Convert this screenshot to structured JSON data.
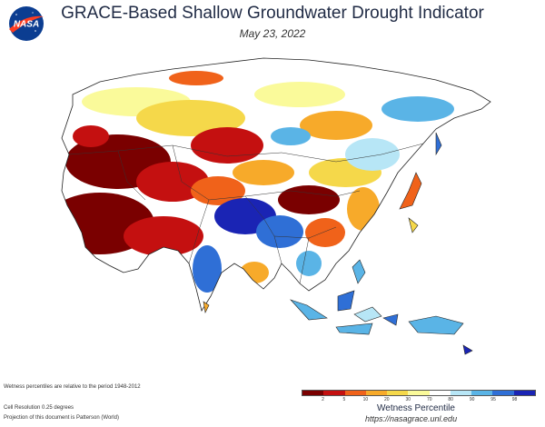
{
  "header": {
    "title": "GRACE-Based Shallow Groundwater Drought Indicator",
    "date": "May 23, 2022",
    "logo_text": "NASA"
  },
  "footer": {
    "note_1": "Wetness percentiles are relative to the period 1948-2012",
    "note_2": "Cell Resolution 0.25 degrees",
    "note_3": "Projection of this document is Patterson (World)"
  },
  "legend": {
    "title": "Wetness Percentile",
    "ticks": [
      "2",
      "5",
      "10",
      "20",
      "30",
      "70",
      "80",
      "90",
      "95",
      "98"
    ],
    "colors": [
      "#7a0000",
      "#c41010",
      "#f0621a",
      "#f7aa2a",
      "#f5d84a",
      "#fafa9a",
      "#ffffff",
      "#b7e6f6",
      "#5ab4e6",
      "#2f6fd6",
      "#1a24b4"
    ]
  },
  "source_url": "https://nasagrace.unl.edu",
  "map": {
    "region": "Asia",
    "colors": {
      "extreme_dry": "#7a0000",
      "very_dry": "#c41010",
      "dry": "#f0621a",
      "moderate_dry": "#f7aa2a",
      "slight_dry": "#f5d84a",
      "near_normal": "#fafa9a",
      "normal": "#ffffff",
      "slight_wet": "#b7e6f6",
      "wet": "#5ab4e6",
      "very_wet": "#2f6fd6",
      "extreme_wet": "#1a24b4"
    }
  }
}
